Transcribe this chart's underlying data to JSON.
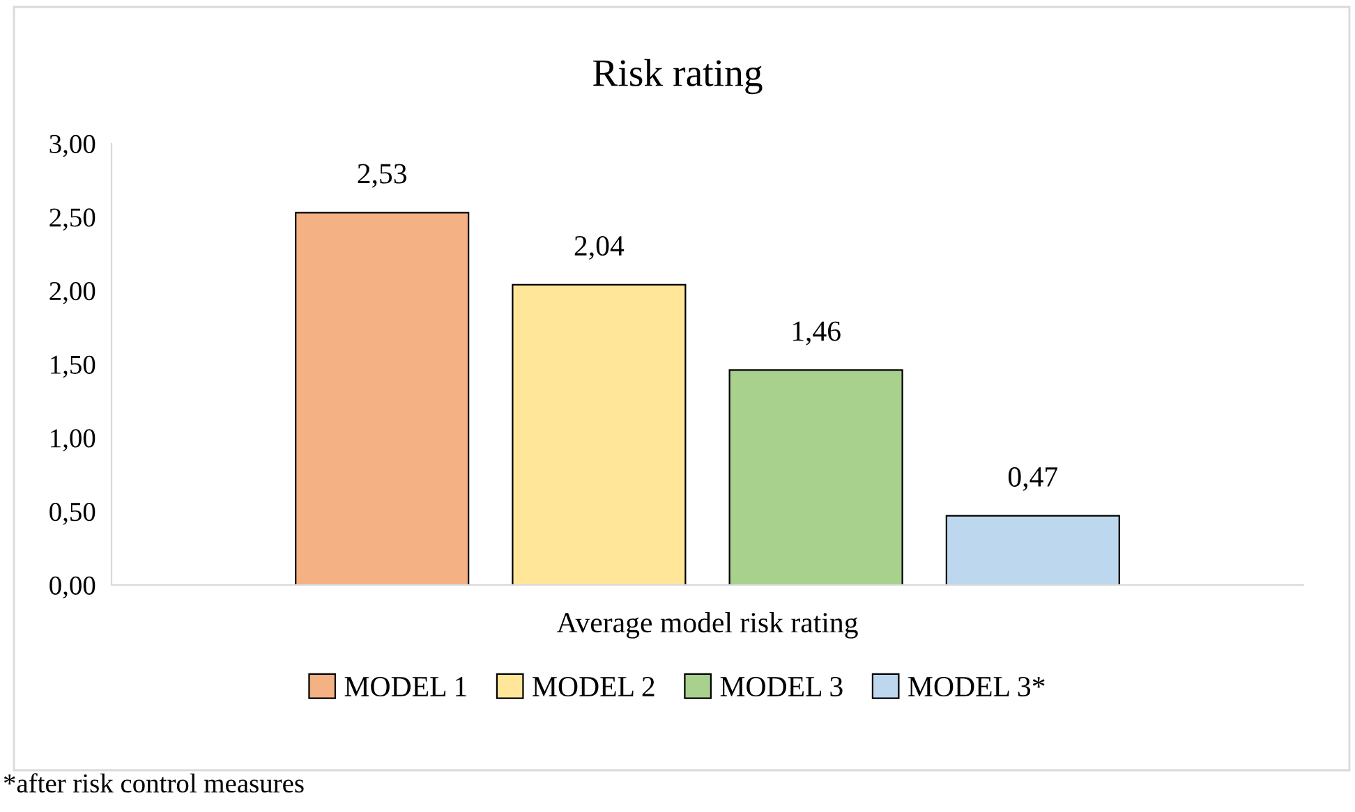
{
  "chart_data": {
    "type": "bar",
    "title": "Risk rating",
    "categories": [
      "Average model risk rating"
    ],
    "series": [
      {
        "name": "MODEL 1",
        "color": "#f4b183",
        "values": [
          2.53
        ],
        "value_labels": [
          "2,53"
        ]
      },
      {
        "name": "MODEL 2",
        "color": "#ffe699",
        "values": [
          2.04
        ],
        "value_labels": [
          "2,04"
        ]
      },
      {
        "name": "MODEL 3",
        "color": "#a9d18e",
        "values": [
          1.46
        ],
        "value_labels": [
          "1,46"
        ]
      },
      {
        "name": "MODEL 3*",
        "color": "#bdd7ee",
        "values": [
          0.47
        ],
        "value_labels": [
          "0,47"
        ]
      }
    ],
    "ylim": [
      0,
      3
    ],
    "yticks": [
      {
        "value": 0,
        "label": "0,00"
      },
      {
        "value": 0.5,
        "label": "0,50"
      },
      {
        "value": 1,
        "label": "1,00"
      },
      {
        "value": 1.5,
        "label": "1,50"
      },
      {
        "value": 2,
        "label": "2,00"
      },
      {
        "value": 2.5,
        "label": "2,50"
      },
      {
        "value": 3,
        "label": "3,00"
      }
    ],
    "grid": false,
    "legend": "bottom",
    "annotations": [
      "*after risk control measures"
    ]
  }
}
